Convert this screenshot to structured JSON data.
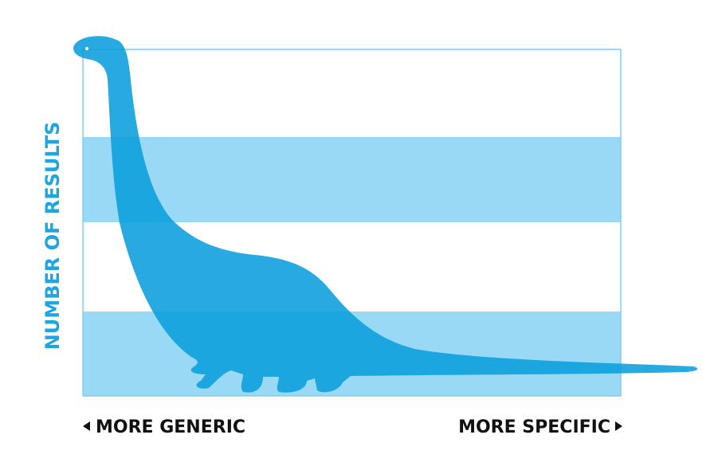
{
  "y_axis_label": "NUMBER OF RESULTS",
  "x_axis_left_label": "MORE GENERIC",
  "x_axis_right_label": "MORE SPECIFIC"
}
